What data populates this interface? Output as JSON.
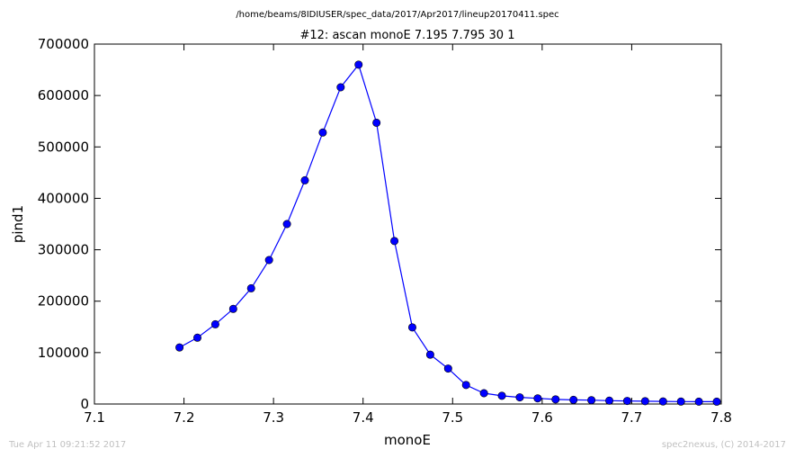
{
  "footer": {
    "timestamp": "Tue Apr 11 09:21:52 2017",
    "credit": "spec2nexus, (C) 2014-2017"
  },
  "chart_data": {
    "type": "line",
    "suptitle": "/home/beams/8IDIUSER/spec_data/2017/Apr2017/lineup20170411.spec",
    "title": "#12: ascan  monoE 7.195 7.795  30 1",
    "xlabel": "monoE",
    "ylabel": "pind1",
    "xlim": [
      7.1,
      7.8
    ],
    "ylim": [
      0,
      700000
    ],
    "xticks": [
      "7.1",
      "7.2",
      "7.3",
      "7.4",
      "7.5",
      "7.6",
      "7.7",
      "7.8"
    ],
    "yticks": [
      "0",
      "100000",
      "200000",
      "300000",
      "400000",
      "500000",
      "600000",
      "700000"
    ],
    "grid": false,
    "color": "#0000ff",
    "marker": "circle",
    "x": [
      7.195,
      7.215,
      7.235,
      7.255,
      7.275,
      7.295,
      7.315,
      7.335,
      7.355,
      7.375,
      7.395,
      7.415,
      7.435,
      7.455,
      7.475,
      7.495,
      7.515,
      7.535,
      7.555,
      7.575,
      7.595,
      7.615,
      7.635,
      7.655,
      7.675,
      7.695,
      7.715,
      7.735,
      7.755,
      7.775,
      7.795
    ],
    "y": [
      110000,
      129000,
      155000,
      185000,
      225000,
      280000,
      350000,
      435000,
      528000,
      616000,
      660000,
      547000,
      317000,
      149000,
      96000,
      69000,
      37000,
      21000,
      16000,
      13000,
      11000,
      9000,
      8000,
      7500,
      6500,
      6000,
      5500,
      5000,
      4800,
      4600,
      4500
    ]
  }
}
